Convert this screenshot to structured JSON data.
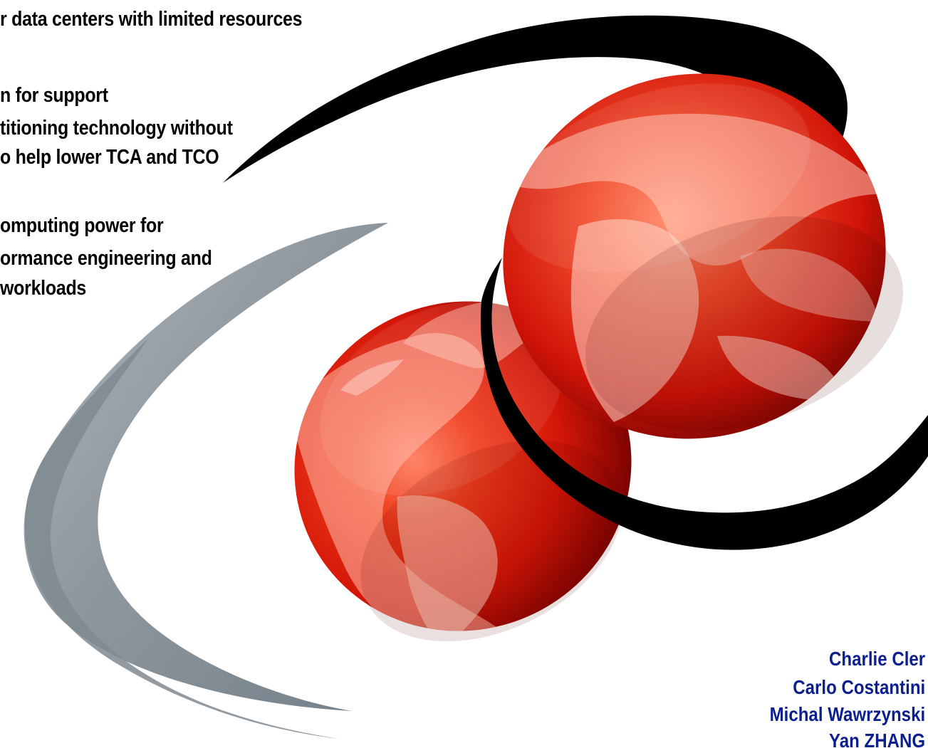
{
  "cover": {
    "feature_lines": [
      "r data centers with limited resources",
      "n for support",
      "titioning technology without",
      "o help lower TCA and TCO",
      "omputing power for",
      "ormance engineering and",
      " workloads"
    ],
    "authors": [
      "Charlie Cler",
      "Carlo Costantini",
      "Michal Wawrzynski",
      "Yan ZHANG"
    ],
    "colors": {
      "globe_red": "#d71f08",
      "globe_dark": "#5a0000",
      "swoosh_black": "#000000",
      "swoosh_gray": "#8c969c",
      "author_text": "#0b1f8f",
      "body_text": "#000000",
      "background": "#ffffff"
    }
  }
}
